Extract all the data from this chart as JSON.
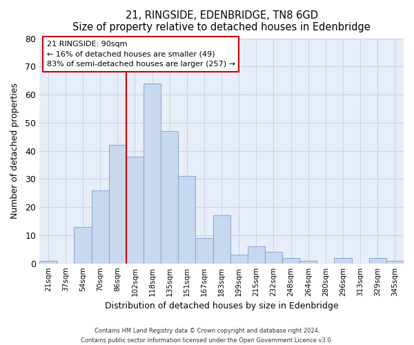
{
  "title": "21, RINGSIDE, EDENBRIDGE, TN8 6GD",
  "subtitle": "Size of property relative to detached houses in Edenbridge",
  "xlabel": "Distribution of detached houses by size in Edenbridge",
  "ylabel": "Number of detached properties",
  "bar_labels": [
    "21sqm",
    "37sqm",
    "54sqm",
    "70sqm",
    "86sqm",
    "102sqm",
    "118sqm",
    "135sqm",
    "151sqm",
    "167sqm",
    "183sqm",
    "199sqm",
    "215sqm",
    "232sqm",
    "248sqm",
    "264sqm",
    "280sqm",
    "296sqm",
    "313sqm",
    "329sqm",
    "345sqm"
  ],
  "bar_values": [
    1,
    0,
    13,
    26,
    42,
    38,
    64,
    47,
    31,
    9,
    17,
    3,
    6,
    4,
    2,
    1,
    0,
    2,
    0,
    2,
    1
  ],
  "bar_color": "#c8d8ee",
  "bar_edge_color": "#8aaed4",
  "vline_x": 4.5,
  "vline_color": "#cc0000",
  "ylim": [
    0,
    80
  ],
  "yticks": [
    0,
    10,
    20,
    30,
    40,
    50,
    60,
    70,
    80
  ],
  "annotation_box_text": "21 RINGSIDE: 90sqm\n← 16% of detached houses are smaller (49)\n83% of semi-detached houses are larger (257) →",
  "footer_line1": "Contains HM Land Registry data © Crown copyright and database right 2024.",
  "footer_line2": "Contains public sector information licensed under the Open Government Licence v3.0.",
  "bg_color": "#ffffff",
  "plot_bg_color": "#e8eef8",
  "grid_color": "#c8d4e8"
}
